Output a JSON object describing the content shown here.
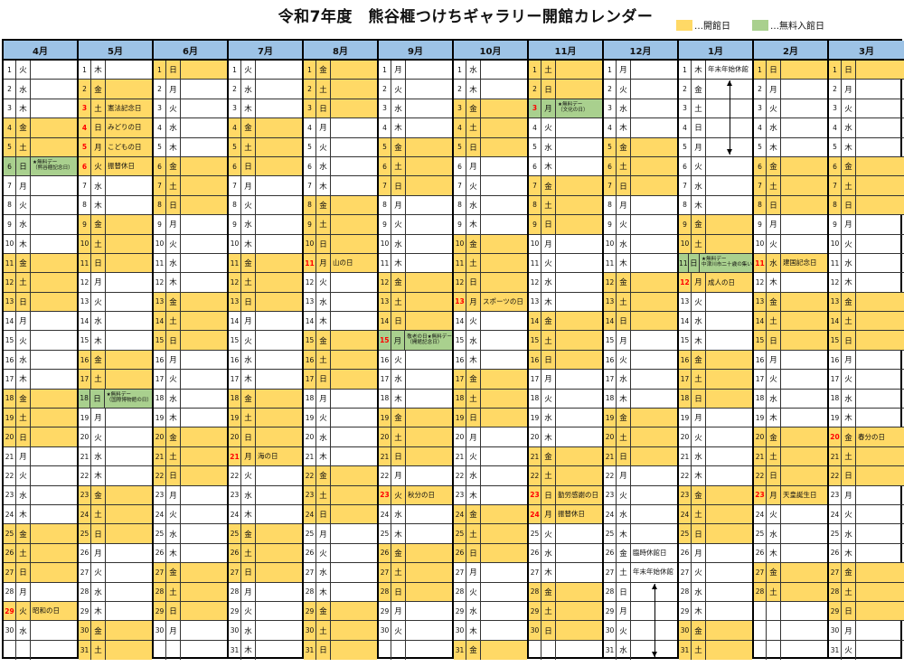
{
  "title": "令和7年度　熊谷榧つけちギャラリー開館カレンダー",
  "legend": [
    {
      "label": "…開館日",
      "color": "#ffd966"
    },
    {
      "label": "…無料入館日",
      "color": "#a9d08e"
    }
  ],
  "colors": {
    "open": "#ffd966",
    "free": "#a9d08e",
    "header": "#9dc3e6",
    "holiday": "#ff0000"
  },
  "months": [
    {
      "label": "4月",
      "n": [
        1,
        2,
        3,
        4,
        5,
        6,
        7,
        8,
        9,
        10,
        11,
        12,
        13,
        14,
        15,
        16,
        17,
        18,
        19,
        20,
        21,
        22,
        23,
        24,
        25,
        26,
        27,
        28,
        29,
        30
      ],
      "w": [
        "火",
        "水",
        "木",
        "金",
        "土",
        "日",
        "月",
        "火",
        "水",
        "木",
        "金",
        "土",
        "日",
        "月",
        "火",
        "水",
        "木",
        "金",
        "土",
        "日",
        "月",
        "火",
        "水",
        "木",
        "金",
        "土",
        "日",
        "月",
        "火",
        "水"
      ],
      "open": [
        4,
        5,
        11,
        12,
        13,
        18,
        19,
        20,
        25,
        26,
        27,
        29
      ],
      "free": [
        6
      ],
      "red": [
        29
      ],
      "notes": {
        "6": "★無料デー\n（熊谷榧記念日）",
        "29": "昭和の日"
      }
    },
    {
      "label": "5月",
      "n": [
        1,
        2,
        3,
        4,
        5,
        6,
        7,
        8,
        9,
        10,
        11,
        12,
        13,
        14,
        15,
        16,
        17,
        18,
        19,
        20,
        21,
        22,
        23,
        24,
        25,
        26,
        27,
        28,
        29,
        30,
        31
      ],
      "w": [
        "木",
        "金",
        "土",
        "日",
        "月",
        "火",
        "水",
        "木",
        "金",
        "土",
        "日",
        "月",
        "火",
        "水",
        "木",
        "金",
        "土",
        "日",
        "月",
        "火",
        "水",
        "木",
        "金",
        "土",
        "日",
        "月",
        "火",
        "水",
        "木",
        "金",
        "土"
      ],
      "open": [
        2,
        3,
        4,
        5,
        6,
        9,
        10,
        11,
        16,
        17,
        23,
        24,
        25,
        30,
        31
      ],
      "free": [
        18
      ],
      "red": [
        3,
        4,
        5,
        6
      ],
      "notes": {
        "3": "憲法記念日",
        "4": "みどりの日",
        "5": "こどもの日",
        "6": "振替休日",
        "18": "★無料デー\n（国際博物館の日）"
      }
    },
    {
      "label": "6月",
      "n": [
        1,
        2,
        3,
        4,
        5,
        6,
        7,
        8,
        9,
        10,
        11,
        12,
        13,
        14,
        15,
        16,
        17,
        18,
        19,
        20,
        21,
        22,
        23,
        24,
        25,
        26,
        27,
        28,
        29,
        30
      ],
      "w": [
        "日",
        "月",
        "火",
        "水",
        "木",
        "金",
        "土",
        "日",
        "月",
        "火",
        "水",
        "木",
        "金",
        "土",
        "日",
        "月",
        "火",
        "水",
        "木",
        "金",
        "土",
        "日",
        "月",
        "火",
        "水",
        "木",
        "金",
        "土",
        "日",
        "月"
      ],
      "open": [
        1,
        6,
        7,
        8,
        13,
        14,
        15,
        20,
        21,
        22,
        27,
        28,
        29
      ],
      "free": [],
      "red": [],
      "notes": {}
    },
    {
      "label": "7月",
      "n": [
        1,
        2,
        3,
        4,
        5,
        6,
        7,
        8,
        9,
        10,
        11,
        12,
        13,
        14,
        15,
        16,
        17,
        18,
        19,
        20,
        21,
        22,
        23,
        24,
        25,
        26,
        27,
        28,
        29,
        30,
        31
      ],
      "w": [
        "火",
        "水",
        "木",
        "金",
        "土",
        "日",
        "月",
        "火",
        "水",
        "木",
        "金",
        "土",
        "日",
        "月",
        "火",
        "水",
        "木",
        "金",
        "土",
        "日",
        "月",
        "火",
        "水",
        "木",
        "金",
        "土",
        "日",
        "月",
        "火",
        "水",
        "木"
      ],
      "open": [
        4,
        5,
        6,
        11,
        12,
        13,
        18,
        19,
        20,
        21,
        25,
        26,
        27
      ],
      "free": [],
      "red": [
        21
      ],
      "notes": {
        "21": "海の日"
      }
    },
    {
      "label": "8月",
      "n": [
        1,
        2,
        3,
        4,
        5,
        6,
        7,
        8,
        9,
        10,
        11,
        12,
        13,
        14,
        15,
        16,
        17,
        18,
        19,
        20,
        21,
        22,
        23,
        24,
        25,
        26,
        27,
        28,
        29,
        30,
        31
      ],
      "w": [
        "金",
        "土",
        "日",
        "月",
        "火",
        "水",
        "木",
        "金",
        "土",
        "日",
        "月",
        "火",
        "水",
        "木",
        "金",
        "土",
        "日",
        "月",
        "火",
        "水",
        "木",
        "金",
        "土",
        "日",
        "月",
        "火",
        "水",
        "木",
        "金",
        "土",
        "日"
      ],
      "open": [
        1,
        2,
        3,
        8,
        9,
        10,
        11,
        15,
        16,
        17,
        22,
        23,
        24,
        29,
        30,
        31
      ],
      "free": [],
      "red": [
        11
      ],
      "notes": {
        "11": "山の日"
      }
    },
    {
      "label": "9月",
      "n": [
        1,
        2,
        3,
        4,
        5,
        6,
        7,
        8,
        9,
        10,
        11,
        12,
        13,
        14,
        15,
        16,
        17,
        18,
        19,
        20,
        21,
        22,
        23,
        24,
        25,
        26,
        27,
        28,
        29,
        30
      ],
      "w": [
        "月",
        "火",
        "水",
        "木",
        "金",
        "土",
        "日",
        "月",
        "火",
        "水",
        "木",
        "金",
        "土",
        "日",
        "月",
        "火",
        "水",
        "木",
        "金",
        "土",
        "日",
        "月",
        "火",
        "水",
        "木",
        "金",
        "土",
        "日",
        "月",
        "火"
      ],
      "open": [
        5,
        6,
        7,
        12,
        13,
        14,
        19,
        20,
        21,
        23,
        26,
        27,
        28
      ],
      "free": [
        15
      ],
      "red": [
        15,
        23
      ],
      "notes": {
        "15": "敬老の日★無料デー\n（開館記念日）",
        "23": "秋分の日"
      }
    },
    {
      "label": "10月",
      "n": [
        1,
        2,
        3,
        4,
        5,
        6,
        7,
        8,
        9,
        10,
        11,
        12,
        13,
        14,
        15,
        16,
        17,
        18,
        19,
        20,
        21,
        22,
        23,
        24,
        25,
        26,
        27,
        28,
        29,
        30,
        31
      ],
      "w": [
        "水",
        "木",
        "金",
        "土",
        "日",
        "月",
        "火",
        "水",
        "木",
        "金",
        "土",
        "日",
        "月",
        "火",
        "水",
        "木",
        "金",
        "土",
        "日",
        "月",
        "火",
        "水",
        "木",
        "金",
        "土",
        "日",
        "月",
        "火",
        "水",
        "木",
        "金"
      ],
      "open": [
        3,
        4,
        5,
        10,
        11,
        12,
        13,
        17,
        18,
        19,
        24,
        25,
        26,
        31
      ],
      "free": [],
      "red": [
        13
      ],
      "notes": {
        "13": "スポーツの日"
      }
    },
    {
      "label": "11月",
      "n": [
        1,
        2,
        3,
        4,
        5,
        6,
        7,
        8,
        9,
        10,
        11,
        12,
        13,
        14,
        15,
        16,
        17,
        18,
        19,
        20,
        21,
        22,
        23,
        24,
        25,
        26,
        27,
        28,
        29,
        30
      ],
      "w": [
        "土",
        "日",
        "月",
        "火",
        "水",
        "木",
        "金",
        "土",
        "日",
        "月",
        "火",
        "水",
        "木",
        "金",
        "土",
        "日",
        "月",
        "火",
        "水",
        "木",
        "金",
        "土",
        "日",
        "月",
        "火",
        "水",
        "木",
        "金",
        "土",
        "日"
      ],
      "open": [
        1,
        2,
        7,
        8,
        9,
        14,
        15,
        16,
        21,
        22,
        23,
        24,
        28,
        29,
        30
      ],
      "free": [
        3
      ],
      "red": [
        3,
        23,
        24
      ],
      "notes": {
        "3": "★無料デー\n（文化の日）",
        "23": "勤労感謝の日",
        "24": "振替休日"
      }
    },
    {
      "label": "12月",
      "n": [
        1,
        2,
        3,
        4,
        5,
        6,
        7,
        8,
        9,
        10,
        11,
        12,
        13,
        14,
        15,
        16,
        17,
        18,
        19,
        20,
        21,
        22,
        23,
        24,
        25,
        26,
        27,
        28,
        29,
        30,
        31
      ],
      "w": [
        "月",
        "火",
        "水",
        "木",
        "金",
        "土",
        "日",
        "月",
        "火",
        "水",
        "木",
        "金",
        "土",
        "日",
        "月",
        "火",
        "水",
        "木",
        "金",
        "土",
        "日",
        "月",
        "火",
        "水",
        "木",
        "金",
        "土",
        "日",
        "月",
        "火",
        "水"
      ],
      "open": [
        5,
        6,
        7,
        12,
        13,
        14,
        19,
        20,
        21
      ],
      "free": [],
      "red": [],
      "notes": {
        "26": "臨時休館日",
        "27": "年末年始休館"
      },
      "arrow": {
        "from": 28,
        "to": 31
      }
    },
    {
      "label": "1月",
      "n": [
        1,
        2,
        3,
        4,
        5,
        6,
        7,
        8,
        9,
        10,
        11,
        12,
        13,
        14,
        15,
        16,
        17,
        18,
        19,
        20,
        21,
        22,
        23,
        24,
        25,
        26,
        27,
        28,
        29,
        30,
        31
      ],
      "w": [
        "木",
        "金",
        "土",
        "日",
        "月",
        "火",
        "水",
        "木",
        "金",
        "土",
        "日",
        "月",
        "火",
        "水",
        "木",
        "金",
        "土",
        "日",
        "月",
        "火",
        "水",
        "木",
        "金",
        "土",
        "日",
        "月",
        "火",
        "水",
        "木",
        "金",
        "土"
      ],
      "open": [
        9,
        10,
        12,
        16,
        17,
        18,
        23,
        24,
        25,
        30,
        31
      ],
      "free": [
        11
      ],
      "red": [
        12
      ],
      "notes": {
        "1": "年末年始休館",
        "11": "★無料デー\n中津川市二十歳の集い",
        "12": "成人の日"
      },
      "arrow": {
        "from": 2,
        "to": 5
      }
    },
    {
      "label": "2月",
      "n": [
        1,
        2,
        3,
        4,
        5,
        6,
        7,
        8,
        9,
        10,
        11,
        12,
        13,
        14,
        15,
        16,
        17,
        18,
        19,
        20,
        21,
        22,
        23,
        24,
        25,
        26,
        27,
        28
      ],
      "w": [
        "日",
        "月",
        "火",
        "水",
        "木",
        "金",
        "土",
        "日",
        "月",
        "火",
        "水",
        "木",
        "金",
        "土",
        "日",
        "月",
        "火",
        "水",
        "木",
        "金",
        "土",
        "日",
        "月",
        "火",
        "水",
        "木",
        "金",
        "土"
      ],
      "open": [
        1,
        6,
        7,
        8,
        11,
        13,
        14,
        15,
        20,
        21,
        22,
        23,
        27,
        28
      ],
      "free": [],
      "red": [
        11,
        23
      ],
      "notes": {
        "11": "建国記念日",
        "23": "天皇誕生日"
      }
    },
    {
      "label": "3月",
      "n": [
        1,
        2,
        3,
        4,
        5,
        6,
        7,
        8,
        9,
        10,
        11,
        12,
        13,
        14,
        15,
        16,
        17,
        18,
        19,
        20,
        21,
        22,
        23,
        24,
        25,
        26,
        27,
        28,
        29,
        30,
        31
      ],
      "w": [
        "日",
        "月",
        "火",
        "水",
        "木",
        "金",
        "土",
        "日",
        "月",
        "火",
        "水",
        "木",
        "金",
        "土",
        "日",
        "月",
        "火",
        "水",
        "木",
        "金",
        "土",
        "日",
        "月",
        "火",
        "水",
        "木",
        "金",
        "土",
        "日",
        "月",
        "火"
      ],
      "open": [
        1,
        6,
        7,
        8,
        13,
        14,
        15,
        20,
        21,
        22,
        27,
        28,
        29
      ],
      "free": [],
      "red": [
        20
      ],
      "notes": {
        "20": "春分の日"
      }
    }
  ]
}
